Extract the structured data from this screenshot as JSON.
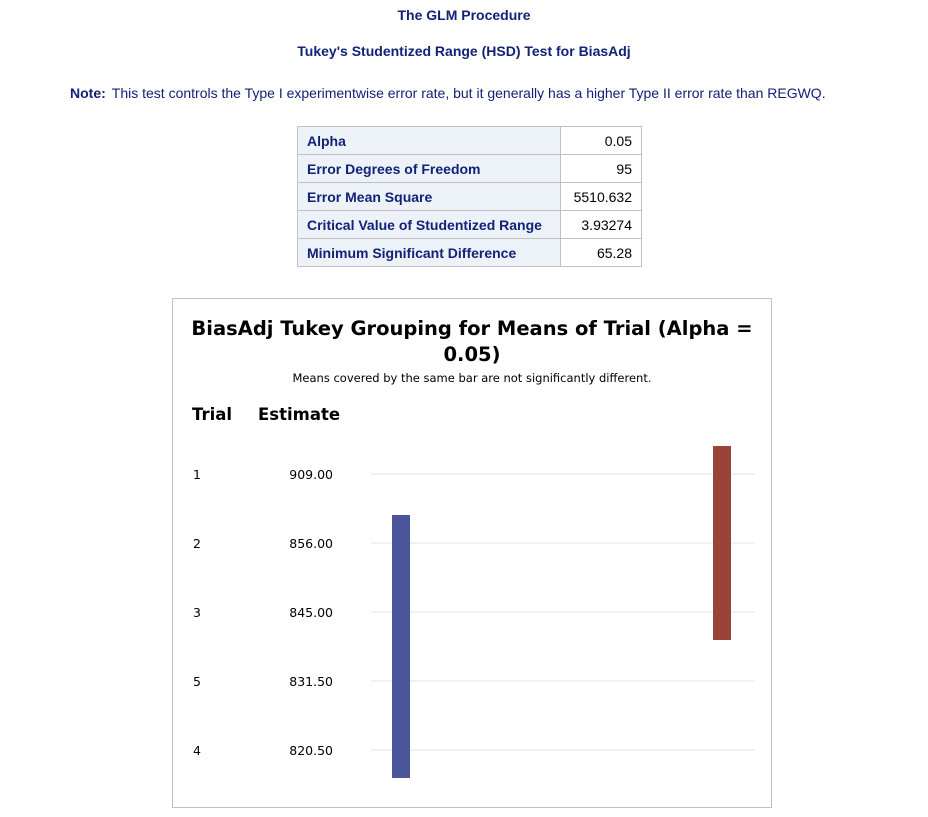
{
  "procedure_title": "The GLM Procedure",
  "test_title": "Tukey's Studentized Range (HSD) Test for BiasAdj",
  "note": {
    "label": "Note:",
    "text": "This test controls the Type I experimentwise error rate, but it generally has a higher Type II error rate than REGWQ."
  },
  "stats": [
    {
      "label": "Alpha",
      "value": "0.05"
    },
    {
      "label": "Error Degrees of Freedom",
      "value": "95"
    },
    {
      "label": "Error Mean Square",
      "value": "5510.632"
    },
    {
      "label": "Critical Value of Studentized Range",
      "value": "3.93274"
    },
    {
      "label": "Minimum Significant Difference",
      "value": "65.28"
    }
  ],
  "chart_data": {
    "type": "table",
    "title_line1": "BiasAdj Tukey Grouping for Means of Trial (Alpha =",
    "title_line2": "0.05)",
    "subtitle": "Means covered by the same bar are not significantly different.",
    "col_trial": "Trial",
    "col_estimate": "Estimate",
    "rows": [
      {
        "trial": "1",
        "estimate": "909.00"
      },
      {
        "trial": "2",
        "estimate": "856.00"
      },
      {
        "trial": "3",
        "estimate": "845.00"
      },
      {
        "trial": "5",
        "estimate": "831.50"
      },
      {
        "trial": "4",
        "estimate": "820.50"
      }
    ],
    "groups": [
      {
        "color": "#4a5699",
        "from_row": 1,
        "to_row": 4
      },
      {
        "color": "#9b4239",
        "from_row": 0,
        "to_row": 2
      }
    ]
  }
}
